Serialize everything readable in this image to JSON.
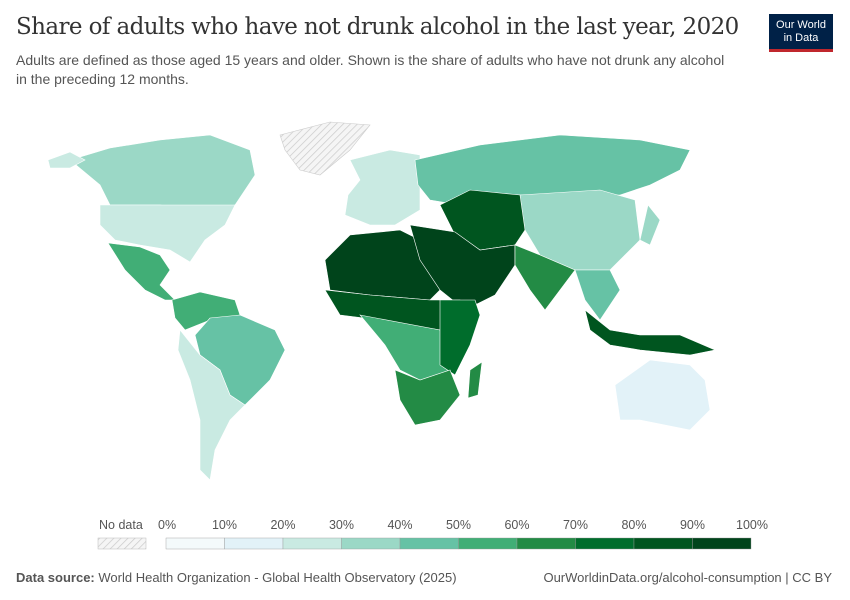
{
  "header": {
    "title": "Share of adults who have not drunk alcohol in the last year, 2020",
    "subtitle": "Adults are defined as those aged 15 years and older. Shown is the share of adults who have not drunk any alcohol in the preceding 12 months.",
    "logo_line1": "Our World",
    "logo_line2": "in Data"
  },
  "legend": {
    "no_data_label": "No data",
    "no_data_color": "#f0f0f0",
    "ticks": [
      "0%",
      "10%",
      "20%",
      "30%",
      "40%",
      "50%",
      "60%",
      "70%",
      "80%",
      "90%",
      "100%"
    ],
    "colors": [
      "#f4fafb",
      "#e2f2f8",
      "#c9eae2",
      "#9bd8c6",
      "#66c2a5",
      "#41ae76",
      "#238b45",
      "#006d2c",
      "#00551f",
      "#00441b"
    ]
  },
  "regions": [
    {
      "name": "Canada",
      "bin": 3
    },
    {
      "name": "United States",
      "bin": 2
    },
    {
      "name": "Alaska",
      "bin": 2
    },
    {
      "name": "Mexico & Central America",
      "bin": 5
    },
    {
      "name": "Northern South America",
      "bin": 5
    },
    {
      "name": "Brazil",
      "bin": 4
    },
    {
      "name": "Southern Cone",
      "bin": 2
    },
    {
      "name": "Europe",
      "bin": 2
    },
    {
      "name": "Russia",
      "bin": 4
    },
    {
      "name": "Central Asia",
      "bin": 8
    },
    {
      "name": "China",
      "bin": 3
    },
    {
      "name": "North Africa",
      "bin": 9
    },
    {
      "name": "Middle East",
      "bin": 9
    },
    {
      "name": "Sahel",
      "bin": 8
    },
    {
      "name": "Central Africa",
      "bin": 5
    },
    {
      "name": "East Africa",
      "bin": 7
    },
    {
      "name": "Southern Africa",
      "bin": 6
    },
    {
      "name": "South Asia",
      "bin": 6
    },
    {
      "name": "Southeast Asia",
      "bin": 4
    },
    {
      "name": "Indonesia",
      "bin": 8
    },
    {
      "name": "Australia",
      "bin": 1
    },
    {
      "name": "Greenland",
      "bin": -1
    },
    {
      "name": "Madagascar",
      "bin": 6
    },
    {
      "name": "Japan",
      "bin": 3
    }
  ],
  "footer": {
    "source_label": "Data source:",
    "source": "World Health Organization - Global Health Observatory (2025)",
    "url": "OurWorldinData.org/alcohol-consumption | CC BY"
  }
}
